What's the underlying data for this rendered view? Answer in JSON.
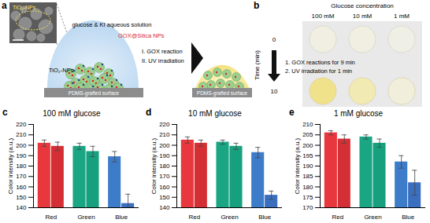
{
  "panels": {
    "labels": [
      "a",
      "b",
      "c",
      "d",
      "e"
    ]
  },
  "diagram": {
    "sem_label": "TiO₂-NPs",
    "solution": "glucose & KI aqueous solution",
    "particles": "GOX@Silica NPs",
    "nanoparticles": "TiO₂-NPs",
    "steps": [
      "I. GOX reaction",
      "II. UV irradiation"
    ],
    "surface": "PDMS-grafted surface"
  },
  "photo": {
    "header": "Glucose concentration",
    "columns": [
      "100 mM",
      "10 mM",
      "1 mM"
    ],
    "row_axis": "Time (min)",
    "rows": [
      "0",
      "10"
    ],
    "steps": [
      "1. GOX reactions for 9 min",
      "2. UV irradiation for 1 min"
    ]
  },
  "chart_data": [
    {
      "type": "bar",
      "title": "100 mM glucose",
      "y_label": "Color intensity (a.u.)",
      "categories": [
        "Red",
        "Green",
        "Blue"
      ],
      "series": [
        {
          "values": [
            202,
            199,
            189
          ],
          "errors": [
            3,
            3,
            5
          ],
          "colors": [
            "#e8383d",
            "#1aa583",
            "#3d7cc9"
          ]
        },
        {
          "values": [
            199,
            194,
            144
          ],
          "errors": [
            4,
            5,
            9
          ],
          "colors": [
            "#d42f35",
            "#16a07e",
            "#3a6fc0"
          ]
        }
      ],
      "ylim": [
        140,
        220
      ],
      "yticks": [
        140,
        150,
        160,
        170,
        180,
        190,
        200,
        210,
        220
      ]
    },
    {
      "type": "bar",
      "title": "10 mM glucose",
      "y_label": "Color intensity (a.u.)",
      "categories": [
        "Red",
        "Green",
        "Blue"
      ],
      "series": [
        {
          "values": [
            205,
            203,
            193
          ],
          "errors": [
            3,
            2,
            5
          ],
          "colors": [
            "#e8383d",
            "#1aa583",
            "#3d7cc9"
          ]
        },
        {
          "values": [
            202,
            199,
            152
          ],
          "errors": [
            3,
            3,
            4
          ],
          "colors": [
            "#d42f35",
            "#16a07e",
            "#3a6fc0"
          ]
        }
      ],
      "ylim": [
        140,
        220
      ],
      "yticks": [
        140,
        150,
        160,
        170,
        180,
        190,
        200,
        210,
        220
      ]
    },
    {
      "type": "bar",
      "title": "1 mM glucose",
      "y_label": "Color intensity (a.u.)",
      "categories": [
        "Red",
        "Green",
        "Blue"
      ],
      "series": [
        {
          "values": [
            206,
            204,
            192
          ],
          "errors": [
            1,
            1,
            3
          ],
          "colors": [
            "#e8383d",
            "#1aa583",
            "#3d7cc9"
          ]
        },
        {
          "values": [
            203,
            201,
            182
          ],
          "errors": [
            2,
            2,
            6
          ],
          "colors": [
            "#d42f35",
            "#16a07e",
            "#3a6fc0"
          ]
        }
      ],
      "ylim": [
        170,
        210
      ],
      "yticks": [
        170,
        175,
        180,
        185,
        190,
        195,
        200,
        205,
        210
      ]
    }
  ]
}
